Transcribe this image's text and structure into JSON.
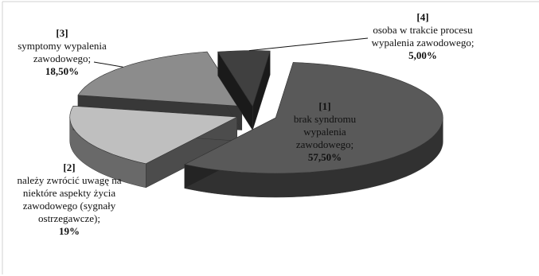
{
  "chart_data": {
    "type": "pie",
    "title": "",
    "style": "3d-exploded",
    "slices": [
      {
        "number": "[1]",
        "label": "brak syndromu wypalenia zawodowego;",
        "value_text": "57,50%",
        "value": 57.5,
        "color": "#595959"
      },
      {
        "number": "[2]",
        "label": "należy zwrócić uwagę na niektóre aspekty życia zawodowego (sygnały ostrzegawcze);",
        "value_text": "19%",
        "value": 19,
        "color": "#bfbfbf"
      },
      {
        "number": "[3]",
        "label": "symptomy wypalenia zawodowego;",
        "value_text": "18,50%",
        "value": 18.5,
        "color": "#8c8c8c"
      },
      {
        "number": "[4]",
        "label": "osoba w trakcie procesu wypalenia zawodowego;",
        "value_text": "5,00%",
        "value": 5,
        "color": "#404040"
      }
    ]
  }
}
